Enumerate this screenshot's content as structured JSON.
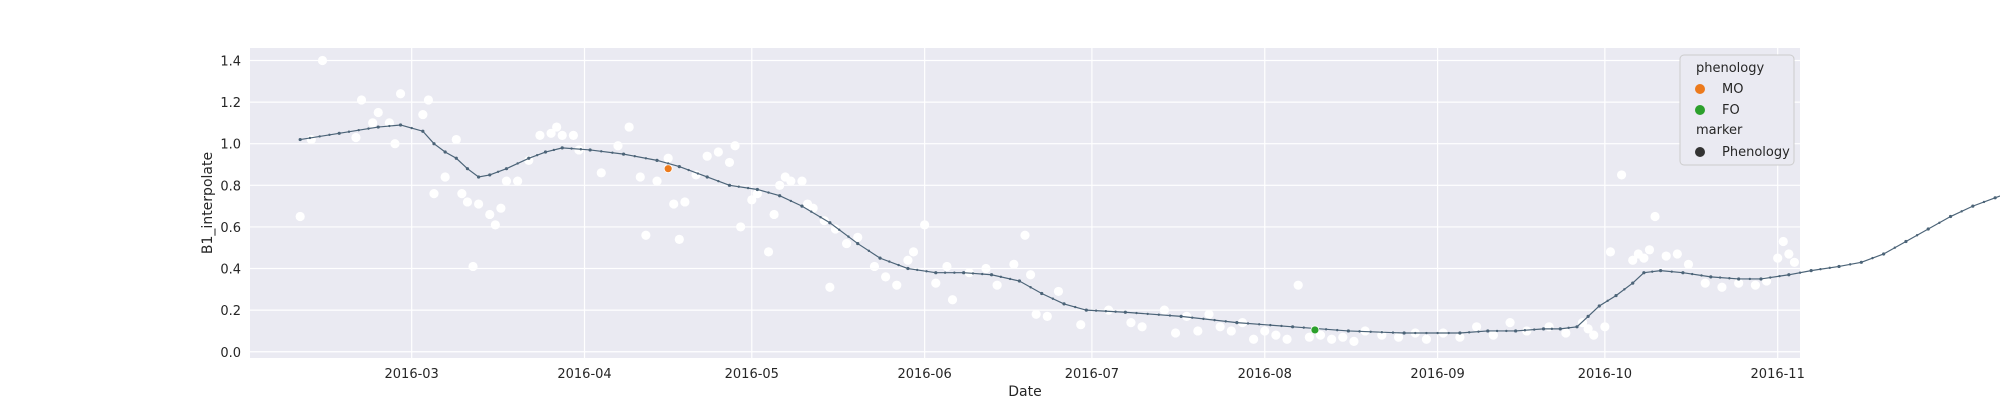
{
  "chart_data": {
    "type": "scatter",
    "xlabel": "Date",
    "ylabel": "B1_interpolate",
    "x_range": [
      "2016-02-01",
      "2016-11-05"
    ],
    "ylim": [
      -0.03,
      1.46
    ],
    "grid": true,
    "background": "#eaeaf2",
    "x_ticks": [
      "2016-03-01",
      "2016-04-01",
      "2016-05-01",
      "2016-06-01",
      "2016-07-01",
      "2016-08-01",
      "2016-09-01",
      "2016-10-01",
      "2016-11-01"
    ],
    "x_tick_labels": [
      "2016-03",
      "2016-04",
      "2016-05",
      "2016-06",
      "2016-07",
      "2016-08",
      "2016-09",
      "2016-10",
      "2016-11"
    ],
    "y_ticks": [
      0.0,
      0.2,
      0.4,
      0.6,
      0.8,
      1.0,
      1.2,
      1.4
    ],
    "y_tick_labels": [
      "0.0",
      "0.2",
      "0.4",
      "0.6",
      "0.8",
      "1.0",
      "1.2",
      "1.4"
    ],
    "curve": {
      "color": "#4c6478",
      "points": [
        [
          "2016-02-10",
          1.02
        ],
        [
          "2016-02-17",
          1.05
        ],
        [
          "2016-02-24",
          1.08
        ],
        [
          "2016-02-28",
          1.09
        ],
        [
          "2016-03-03",
          1.06
        ],
        [
          "2016-03-05",
          1.0
        ],
        [
          "2016-03-07",
          0.96
        ],
        [
          "2016-03-09",
          0.93
        ],
        [
          "2016-03-11",
          0.88
        ],
        [
          "2016-03-13",
          0.84
        ],
        [
          "2016-03-15",
          0.85
        ],
        [
          "2016-03-18",
          0.88
        ],
        [
          "2016-03-22",
          0.93
        ],
        [
          "2016-03-25",
          0.96
        ],
        [
          "2016-03-28",
          0.98
        ],
        [
          "2016-04-02",
          0.97
        ],
        [
          "2016-04-08",
          0.95
        ],
        [
          "2016-04-14",
          0.92
        ],
        [
          "2016-04-18",
          0.89
        ],
        [
          "2016-04-23",
          0.84
        ],
        [
          "2016-04-27",
          0.8
        ],
        [
          "2016-05-02",
          0.78
        ],
        [
          "2016-05-06",
          0.75
        ],
        [
          "2016-05-10",
          0.7
        ],
        [
          "2016-05-15",
          0.62
        ],
        [
          "2016-05-20",
          0.52
        ],
        [
          "2016-05-24",
          0.45
        ],
        [
          "2016-05-29",
          0.4
        ],
        [
          "2016-06-03",
          0.38
        ],
        [
          "2016-06-08",
          0.38
        ],
        [
          "2016-06-13",
          0.37
        ],
        [
          "2016-06-18",
          0.34
        ],
        [
          "2016-06-22",
          0.28
        ],
        [
          "2016-06-26",
          0.23
        ],
        [
          "2016-06-30",
          0.2
        ],
        [
          "2016-07-07",
          0.19
        ],
        [
          "2016-07-17",
          0.17
        ],
        [
          "2016-07-27",
          0.14
        ],
        [
          "2016-08-06",
          0.12
        ],
        [
          "2016-08-16",
          0.1
        ],
        [
          "2016-08-26",
          0.09
        ],
        [
          "2016-09-05",
          0.09
        ],
        [
          "2016-09-10",
          0.1
        ],
        [
          "2016-09-15",
          0.1
        ],
        [
          "2016-09-20",
          0.11
        ],
        [
          "2016-09-23",
          0.11
        ],
        [
          "2016-09-26",
          0.12
        ],
        [
          "2016-09-28",
          0.17
        ],
        [
          "2016-09-30",
          0.22
        ],
        [
          "2016-10-03",
          0.27
        ],
        [
          "2016-10-06",
          0.33
        ],
        [
          "2016-10-08",
          0.38
        ],
        [
          "2016-10-11",
          0.39
        ],
        [
          "2016-10-15",
          0.38
        ],
        [
          "2016-10-20",
          0.36
        ],
        [
          "2016-10-25",
          0.35
        ],
        [
          "2016-10-29",
          0.35
        ],
        [
          "2016-11-03",
          0.37
        ],
        [
          "2016-11-07",
          0.39
        ],
        [
          "2016-11-12",
          0.41
        ],
        [
          "2016-11-16",
          0.43
        ],
        [
          "2016-11-20",
          0.47
        ],
        [
          "2016-11-24",
          0.53
        ],
        [
          "2016-11-28",
          0.59
        ],
        [
          "2016-12-02",
          0.65
        ],
        [
          "2016-12-06",
          0.7
        ],
        [
          "2016-12-10",
          0.74
        ],
        [
          "2016-12-12",
          0.76
        ]
      ]
    },
    "observations": {
      "color": "#ffffff",
      "points": [
        [
          "2016-02-10",
          0.65
        ],
        [
          "2016-02-12",
          1.02
        ],
        [
          "2016-02-14",
          1.4
        ],
        [
          "2016-02-20",
          1.03
        ],
        [
          "2016-02-21",
          1.21
        ],
        [
          "2016-02-23",
          1.1
        ],
        [
          "2016-02-24",
          1.15
        ],
        [
          "2016-02-26",
          1.1
        ],
        [
          "2016-02-27",
          1.0
        ],
        [
          "2016-02-28",
          1.24
        ],
        [
          "2016-03-03",
          1.14
        ],
        [
          "2016-03-04",
          1.21
        ],
        [
          "2016-03-05",
          0.76
        ],
        [
          "2016-03-07",
          0.84
        ],
        [
          "2016-03-09",
          1.02
        ],
        [
          "2016-03-10",
          0.76
        ],
        [
          "2016-03-11",
          0.72
        ],
        [
          "2016-03-12",
          0.41
        ],
        [
          "2016-03-13",
          0.71
        ],
        [
          "2016-03-15",
          0.66
        ],
        [
          "2016-03-16",
          0.61
        ],
        [
          "2016-03-17",
          0.69
        ],
        [
          "2016-03-18",
          0.82
        ],
        [
          "2016-03-20",
          0.82
        ],
        [
          "2016-03-22",
          0.92
        ],
        [
          "2016-03-24",
          1.04
        ],
        [
          "2016-03-26",
          1.05
        ],
        [
          "2016-03-27",
          1.08
        ],
        [
          "2016-03-28",
          1.04
        ],
        [
          "2016-03-30",
          1.04
        ],
        [
          "2016-03-31",
          0.97
        ],
        [
          "2016-04-04",
          0.86
        ],
        [
          "2016-04-07",
          0.99
        ],
        [
          "2016-04-09",
          1.08
        ],
        [
          "2016-04-11",
          0.84
        ],
        [
          "2016-04-12",
          0.56
        ],
        [
          "2016-04-14",
          0.82
        ],
        [
          "2016-04-16",
          0.93
        ],
        [
          "2016-04-17",
          0.71
        ],
        [
          "2016-04-18",
          0.54
        ],
        [
          "2016-04-19",
          0.72
        ],
        [
          "2016-04-21",
          0.85
        ],
        [
          "2016-04-23",
          0.94
        ],
        [
          "2016-04-25",
          0.96
        ],
        [
          "2016-04-27",
          0.91
        ],
        [
          "2016-04-28",
          0.99
        ],
        [
          "2016-04-29",
          0.6
        ],
        [
          "2016-05-01",
          0.73
        ],
        [
          "2016-05-02",
          0.76
        ],
        [
          "2016-05-04",
          0.48
        ],
        [
          "2016-05-05",
          0.66
        ],
        [
          "2016-05-06",
          0.8
        ],
        [
          "2016-05-07",
          0.84
        ],
        [
          "2016-05-08",
          0.82
        ],
        [
          "2016-05-10",
          0.82
        ],
        [
          "2016-05-11",
          0.71
        ],
        [
          "2016-05-12",
          0.69
        ],
        [
          "2016-05-14",
          0.63
        ],
        [
          "2016-05-15",
          0.31
        ],
        [
          "2016-05-16",
          0.59
        ],
        [
          "2016-05-18",
          0.52
        ],
        [
          "2016-05-20",
          0.55
        ],
        [
          "2016-05-23",
          0.41
        ],
        [
          "2016-05-25",
          0.36
        ],
        [
          "2016-05-27",
          0.32
        ],
        [
          "2016-05-29",
          0.44
        ],
        [
          "2016-05-30",
          0.48
        ],
        [
          "2016-06-01",
          0.61
        ],
        [
          "2016-06-03",
          0.33
        ],
        [
          "2016-06-05",
          0.41
        ],
        [
          "2016-06-06",
          0.25
        ],
        [
          "2016-06-09",
          0.38
        ],
        [
          "2016-06-12",
          0.4
        ],
        [
          "2016-06-14",
          0.32
        ],
        [
          "2016-06-17",
          0.42
        ],
        [
          "2016-06-19",
          0.56
        ],
        [
          "2016-06-20",
          0.37
        ],
        [
          "2016-06-21",
          0.18
        ],
        [
          "2016-06-23",
          0.17
        ],
        [
          "2016-06-25",
          0.29
        ],
        [
          "2016-06-29",
          0.13
        ],
        [
          "2016-07-04",
          0.2
        ],
        [
          "2016-07-08",
          0.14
        ],
        [
          "2016-07-10",
          0.12
        ],
        [
          "2016-07-14",
          0.2
        ],
        [
          "2016-07-16",
          0.09
        ],
        [
          "2016-07-18",
          0.17
        ],
        [
          "2016-07-20",
          0.1
        ],
        [
          "2016-07-22",
          0.18
        ],
        [
          "2016-07-24",
          0.12
        ],
        [
          "2016-07-26",
          0.1
        ],
        [
          "2016-07-28",
          0.14
        ],
        [
          "2016-07-30",
          0.06
        ],
        [
          "2016-08-01",
          0.1
        ],
        [
          "2016-08-03",
          0.08
        ],
        [
          "2016-08-05",
          0.06
        ],
        [
          "2016-08-07",
          0.32
        ],
        [
          "2016-08-09",
          0.07
        ],
        [
          "2016-08-11",
          0.08
        ],
        [
          "2016-08-13",
          0.06
        ],
        [
          "2016-08-15",
          0.07
        ],
        [
          "2016-08-17",
          0.05
        ],
        [
          "2016-08-19",
          0.1
        ],
        [
          "2016-08-22",
          0.08
        ],
        [
          "2016-08-25",
          0.07
        ],
        [
          "2016-08-28",
          0.09
        ],
        [
          "2016-08-30",
          0.06
        ],
        [
          "2016-09-02",
          0.09
        ],
        [
          "2016-09-05",
          0.07
        ],
        [
          "2016-09-08",
          0.12
        ],
        [
          "2016-09-11",
          0.08
        ],
        [
          "2016-09-14",
          0.14
        ],
        [
          "2016-09-17",
          0.1
        ],
        [
          "2016-09-21",
          0.12
        ],
        [
          "2016-09-24",
          0.09
        ],
        [
          "2016-09-27",
          0.14
        ],
        [
          "2016-09-28",
          0.11
        ],
        [
          "2016-09-29",
          0.08
        ],
        [
          "2016-10-01",
          0.12
        ],
        [
          "2016-10-02",
          0.48
        ],
        [
          "2016-10-04",
          0.85
        ],
        [
          "2016-10-06",
          0.44
        ],
        [
          "2016-10-07",
          0.47
        ],
        [
          "2016-10-08",
          0.45
        ],
        [
          "2016-10-09",
          0.49
        ],
        [
          "2016-10-10",
          0.65
        ],
        [
          "2016-10-12",
          0.46
        ],
        [
          "2016-10-14",
          0.47
        ],
        [
          "2016-10-16",
          0.42
        ],
        [
          "2016-10-19",
          0.33
        ],
        [
          "2016-10-22",
          0.31
        ],
        [
          "2016-10-25",
          0.33
        ],
        [
          "2016-10-28",
          0.32
        ],
        [
          "2016-10-30",
          0.34
        ],
        [
          "2016-11-01",
          0.45
        ],
        [
          "2016-11-02",
          0.53
        ],
        [
          "2016-11-03",
          0.47
        ],
        [
          "2016-11-04",
          0.43
        ],
        [
          "2016-11-06",
          0.43
        ],
        [
          "2016-11-08",
          0.34
        ],
        [
          "2016-11-09",
          0.23
        ],
        [
          "2016-11-11",
          0.32
        ],
        [
          "2016-11-13",
          0.35
        ],
        [
          "2016-11-15",
          0.43
        ],
        [
          "2016-11-17",
          0.36
        ],
        [
          "2016-11-19",
          0.45
        ],
        [
          "2016-11-21",
          0.6
        ],
        [
          "2016-11-22",
          0.58
        ],
        [
          "2016-11-24",
          0.82
        ],
        [
          "2016-11-25",
          1.05
        ],
        [
          "2016-11-27",
          0.66
        ],
        [
          "2016-11-29",
          0.67
        ],
        [
          "2016-12-01",
          0.28
        ],
        [
          "2016-12-04",
          0.66
        ],
        [
          "2016-12-06",
          0.66
        ],
        [
          "2016-12-08",
          0.52
        ]
      ]
    },
    "phenology_points": [
      {
        "date": "2016-04-16",
        "value": 0.88,
        "phenology": "MO",
        "color": "#ec7a1c"
      },
      {
        "date": "2016-08-10",
        "value": 0.105,
        "phenology": "FO",
        "color": "#2ca02c"
      }
    ],
    "legend": {
      "placement": "top-right",
      "hue_title": "phenology",
      "hue_entries": [
        {
          "label": "MO",
          "color": "#ec7a1c"
        },
        {
          "label": "FO",
          "color": "#2ca02c"
        }
      ],
      "style_title": "marker",
      "style_entries": [
        {
          "label": "Phenology",
          "color": "#333333"
        }
      ]
    }
  }
}
